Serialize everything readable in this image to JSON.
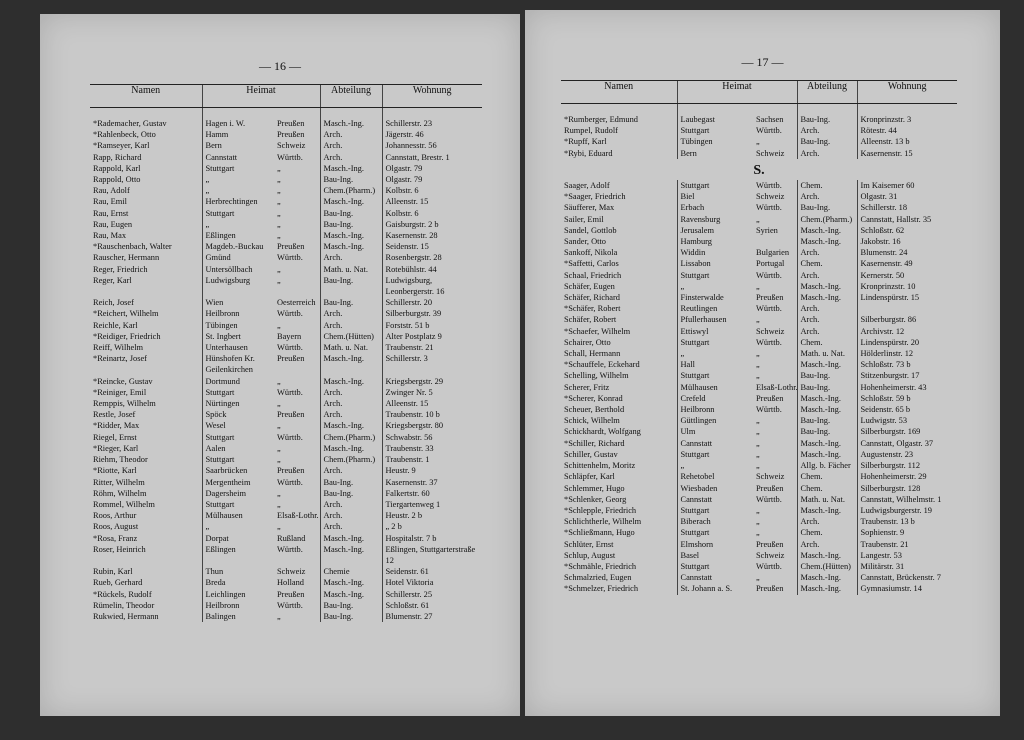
{
  "pages": [
    {
      "page_number": "— 16 —",
      "headers": [
        "Namen",
        "Heimat",
        "Abteilung",
        "Wohnung"
      ],
      "groups": [
        {
          "rows": [
            [
              "*Rademacher, Gustav",
              "Hagen i. W.",
              "Preußen",
              "Masch.-Ing.",
              "Schillerstr. 23"
            ],
            [
              "*Rahlenbeck, Otto",
              "Hamm",
              "Preußen",
              "Arch.",
              "Jägerstr. 46"
            ],
            [
              "*Ramseyer, Karl",
              "Bern",
              "Schweiz",
              "Arch.",
              "Johannesstr. 56"
            ],
            [
              "Rapp, Richard",
              "Cannstatt",
              "Württb.",
              "Arch.",
              "Cannstatt, Brestr. 1"
            ],
            [
              "Rappold, Karl",
              "Stuttgart",
              "„",
              "Masch.-Ing.",
              "Olgastr. 79"
            ],
            [
              "Rappold, Otto",
              "„",
              "„",
              "Bau-Ing.",
              "Olgastr. 79"
            ],
            [
              "Rau, Adolf",
              "„",
              "„",
              "Chem.(Pharm.)",
              "Kolbstr. 6"
            ],
            [
              "Rau, Emil",
              "Herbrechtingen",
              "„",
              "Masch.-Ing.",
              "Alleenstr. 15"
            ],
            [
              "Rau, Ernst",
              "Stuttgart",
              "„",
              "Bau-Ing.",
              "Kolbstr. 6"
            ],
            [
              "Rau, Eugen",
              "„",
              "„",
              "Bau-Ing.",
              "Gaisburgstr. 2 b"
            ],
            [
              "Rau, Max",
              "Eßlingen",
              "„",
              "Masch.-Ing.",
              "Kasernenstr. 28"
            ],
            [
              "*Rauschenbach, Walter",
              "Magdeb.-Buckau",
              "Preußen",
              "Masch.-Ing.",
              "Seidenstr. 15"
            ],
            [
              "Rauscher, Hermann",
              "Gmünd",
              "Württb.",
              "Arch.",
              "Rosenbergstr. 28"
            ],
            [
              "Reger, Friedrich",
              "Untersöllbach",
              "„",
              "Math. u. Nat.",
              "Rotebühlstr. 44"
            ],
            [
              "Reger, Karl",
              "Ludwigsburg",
              "„",
              "Bau-Ing.",
              "Ludwigsburg, Leonbergerstr. 16"
            ],
            [
              "Reich, Josef",
              "Wien",
              "Oesterreich",
              "Bau-Ing.",
              "Schillerstr. 20"
            ],
            [
              "*Reichert, Wilhelm",
              "Heilbronn",
              "Württb.",
              "Arch.",
              "Silberburgstr. 39"
            ],
            [
              "Reichle, Karl",
              "Tübingen",
              "„",
              "Arch.",
              "Forststr. 51 b"
            ],
            [
              "*Reidiger, Friedrich",
              "St. Ingbert",
              "Bayern",
              "Chem.(Hütten)",
              "Alter Postplatz 9"
            ],
            [
              "Reiff, Wilhelm",
              "Unterhausen",
              "Württb.",
              "Math. u. Nat.",
              "Traubenstr. 21"
            ],
            [
              "*Reinartz, Josef",
              "Hünshofen Kr. Geilenkirchen",
              "Preußen",
              "Masch.-Ing.",
              "Schillerstr. 3"
            ],
            [
              "*Reincke, Gustav",
              "Dortmund",
              "„",
              "Masch.-Ing.",
              "Kriegsbergstr. 29"
            ],
            [
              "*Reiniger, Emil",
              "Stuttgart",
              "Württb.",
              "Arch.",
              "Zwinger Nr. 5"
            ],
            [
              "Remppis, Wilhelm",
              "Nürtingen",
              "„",
              "Arch.",
              "Alleenstr. 15"
            ],
            [
              "Restle, Josef",
              "Spöck",
              "Preußen",
              "Arch.",
              "Traubenstr. 10 b"
            ],
            [
              "*Ridder, Max",
              "Wesel",
              "„",
              "Masch.-Ing.",
              "Kriegsbergstr. 80"
            ],
            [
              "Riegel, Ernst",
              "Stuttgart",
              "Württb.",
              "Chem.(Pharm.)",
              "Schwabstr. 56"
            ],
            [
              "*Rieger, Karl",
              "Aalen",
              "„",
              "Masch.-Ing.",
              "Traubenstr. 33"
            ],
            [
              "Riehm, Theodor",
              "Stuttgart",
              "„",
              "Chem.(Pharm.)",
              "Traubenstr. 1"
            ],
            [
              "*Riotte, Karl",
              "Saarbrücken",
              "Preußen",
              "Arch.",
              "Heustr. 9"
            ],
            [
              "Ritter, Wilhelm",
              "Mergentheim",
              "Württb.",
              "Bau-Ing.",
              "Kasernenstr. 37"
            ],
            [
              "Röhm, Wilhelm",
              "Dagersheim",
              "„",
              "Bau-Ing.",
              "Falkertstr. 60"
            ],
            [
              "Rommel, Wilhelm",
              "Stuttgart",
              "„",
              "Arch.",
              "Tiergartenweg 1"
            ],
            [
              "Roos, Arthur",
              "Mülhausen",
              "Elsaß-Lothr.",
              "Arch.",
              "Heustr. 2 b"
            ],
            [
              "Roos, August",
              "„",
              "„",
              "Arch.",
              "„ 2 b"
            ],
            [
              "*Rosa, Franz",
              "Dorpat",
              "Rußland",
              "Masch.-Ing.",
              "Hospitalstr. 7 b"
            ],
            [
              "Roser, Heinrich",
              "Eßlingen",
              "Württb.",
              "Masch.-Ing.",
              "Eßlingen, Stuttgarterstraße 12"
            ],
            [
              "Rubin, Karl",
              "Thun",
              "Schweiz",
              "Chemie",
              "Seidenstr. 61"
            ],
            [
              "Rueb, Gerhard",
              "Breda",
              "Holland",
              "Masch.-Ing.",
              "Hotel Viktoria"
            ],
            [
              "*Rückels, Rudolf",
              "Leichlingen",
              "Preußen",
              "Masch.-Ing.",
              "Schillerstr. 25"
            ],
            [
              "Rümelin, Theodor",
              "Heilbronn",
              "Württb.",
              "Bau-Ing.",
              "Schloßstr. 61"
            ],
            [
              "Rukwied, Hermann",
              "Balingen",
              "„",
              "Bau-Ing.",
              "Blumenstr. 27"
            ]
          ]
        }
      ]
    },
    {
      "page_number": "— 17 —",
      "headers": [
        "Namen",
        "Heimat",
        "Abteilung",
        "Wohnung"
      ],
      "groups": [
        {
          "rows": [
            [
              "*Rumberger, Edmund",
              "Laubegast",
              "Sachsen",
              "Bau-Ing.",
              "Kronprinzstr. 3"
            ],
            [
              "Rumpel, Rudolf",
              "Stuttgart",
              "Württb.",
              "Arch.",
              "Rötestr. 44"
            ],
            [
              "*Rupff, Karl",
              "Tübingen",
              "„",
              "Bau-Ing.",
              "Alleenstr. 13 b"
            ],
            [
              "*Rybi, Eduard",
              "Bern",
              "Schweiz",
              "Arch.",
              "Kasernenstr. 15"
            ]
          ]
        },
        {
          "heading": "S.",
          "rows": [
            [
              "Saager, Adolf",
              "Stuttgart",
              "Württb.",
              "Chem.",
              "Im Kaisemer 60"
            ],
            [
              "*Saager, Friedrich",
              "Biel",
              "Schweiz",
              "Arch.",
              "Olgastr. 31"
            ],
            [
              "Säufferer, Max",
              "Erbach",
              "Württb.",
              "Bau-Ing.",
              "Schillerstr. 18"
            ],
            [
              "Sailer, Emil",
              "Ravensburg",
              "„",
              "Chem.(Pharm.)",
              "Cannstatt, Hallstr. 35"
            ],
            [
              "Sandel, Gottlob",
              "Jerusalem",
              "Syrien",
              "Masch.-Ing.",
              "Schloßstr. 62"
            ],
            [
              "Sander, Otto",
              "Hamburg",
              null,
              "Masch.-Ing.",
              "Jakobstr. 16"
            ],
            [
              "Sankoff, Nikola",
              "Widdin",
              "Bulgarien",
              "Arch.",
              "Blumenstr. 24"
            ],
            [
              "*Saffetti, Carlos",
              "Lissabon",
              "Portugal",
              "Chem.",
              "Kasernenstr. 49"
            ],
            [
              "Schaal, Friedrich",
              "Stuttgart",
              "Württb.",
              "Arch.",
              "Kernerstr. 50"
            ],
            [
              "Schäfer, Eugen",
              "„",
              "„",
              "Masch.-Ing.",
              "Kronprinzstr. 10"
            ],
            [
              "Schäfer, Richard",
              "Finsterwalde",
              "Preußen",
              "Masch.-Ing.",
              "Lindenspürstr. 15"
            ],
            [
              "*Schäfer, Robert",
              "Reutlingen",
              "Württb.",
              "Arch.",
              null
            ],
            [
              "Schäfer, Robert",
              "Pfullerhausen",
              "„",
              "Arch.",
              "Silberburgstr. 86"
            ],
            [
              "*Schaefer, Wilhelm",
              "Ettiswyl",
              "Schweiz",
              "Arch.",
              "Archivstr. 12"
            ],
            [
              "Schairer, Otto",
              "Stuttgart",
              "Württb.",
              "Chem.",
              "Lindenspürstr. 20"
            ],
            [
              "Schall, Hermann",
              "„",
              "„",
              "Math. u. Nat.",
              "Hölderlinstr. 12"
            ],
            [
              "*Schauffele, Eckehard",
              "Hall",
              "„",
              "Masch.-Ing.",
              "Schloßstr. 73 b"
            ],
            [
              "Schelling, Wilhelm",
              "Stuttgart",
              "„",
              "Bau-Ing.",
              "Stitzenburgstr. 17"
            ],
            [
              "Scherer, Fritz",
              "Mülhausen",
              "Elsaß-Lothr.",
              "Bau-Ing.",
              "Hohenheimerstr. 43"
            ],
            [
              "*Scherer, Konrad",
              "Crefeld",
              "Preußen",
              "Masch.-Ing.",
              "Schloßstr. 59 b"
            ],
            [
              "Scheuer, Berthold",
              "Heilbronn",
              "Württb.",
              "Masch.-Ing.",
              "Seidenstr. 65 b"
            ],
            [
              "Schick, Wilhelm",
              "Güttlingen",
              "„",
              "Bau-Ing.",
              "Ludwigstr. 53"
            ],
            [
              "Schickhardt, Wolfgang",
              "Ulm",
              "„",
              "Bau-Ing.",
              "Silberburgstr. 169"
            ],
            [
              "*Schiller, Richard",
              "Cannstatt",
              "„",
              "Masch.-Ing.",
              "Cannstatt, Olgastr. 37"
            ],
            [
              "Schiller, Gustav",
              "Stuttgart",
              "„",
              "Masch.-Ing.",
              "Augustenstr. 23"
            ],
            [
              "Schittenhelm, Moritz",
              "„",
              "„",
              "Allg. b. Fächer",
              "Silberburgstr. 112"
            ],
            [
              "Schläpfer, Karl",
              "Rehetobel",
              "Schweiz",
              "Chem.",
              "Hohenheimerstr. 29"
            ],
            [
              "Schlemmer, Hugo",
              "Wiesbaden",
              "Preußen",
              "Chem.",
              "Silberburgstr. 128"
            ],
            [
              "*Schlenker, Georg",
              "Cannstatt",
              "Württb.",
              "Math. u. Nat.",
              "Cannstatt, Wilhelmstr. 1"
            ],
            [
              "*Schlepple, Friedrich",
              "Stuttgart",
              "„",
              "Masch.-Ing.",
              "Ludwigsburgerstr. 19"
            ],
            [
              "Schlichtherle, Wilhelm",
              "Biberach",
              "„",
              "Arch.",
              "Traubenstr. 13 b"
            ],
            [
              "*Schließmann, Hugo",
              "Stuttgart",
              "„",
              "Chem.",
              "Sophienstr. 9"
            ],
            [
              "Schlüter, Ernst",
              "Elmshorn",
              "Preußen",
              "Arch.",
              "Traubenstr. 21"
            ],
            [
              "Schlup, August",
              "Basel",
              "Schweiz",
              "Masch.-Ing.",
              "Langestr. 53"
            ],
            [
              "*Schmähle, Friedrich",
              "Stuttgart",
              "Württb.",
              "Chem.(Hütten)",
              "Militärstr. 31"
            ],
            [
              "Schmalzried, Eugen",
              "Cannstatt",
              "„",
              "Masch.-Ing.",
              "Cannstatt, Brückenstr. 7"
            ],
            [
              "*Schmelzer, Friedrich",
              "St. Johann a. S.",
              "Preußen",
              "Masch.-Ing.",
              "Gymnasiumstr. 14"
            ]
          ]
        }
      ]
    }
  ]
}
